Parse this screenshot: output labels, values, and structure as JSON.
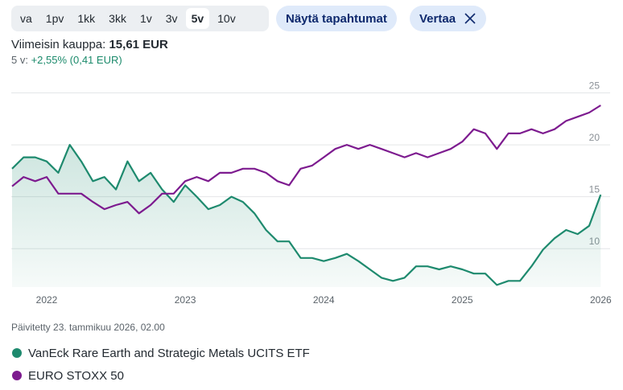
{
  "ui": {
    "tabs": [
      "va",
      "1pv",
      "1kk",
      "3kk",
      "1v",
      "3v",
      "5v",
      "10v"
    ],
    "selected_tab": 6,
    "show_events": "Näytä tapahtumat",
    "compare": "Vertaa",
    "last_trade_label": "Viimeisin kauppa:",
    "last_trade_value": "15,61 EUR",
    "change_label": "5 v:",
    "change_value": "+2,55% (0,41 EUR)",
    "updated": "Päivitetty 23. tammikuu 2026, 02.00"
  },
  "chart_data": {
    "type": "line",
    "categories": [
      null,
      null,
      null,
      "2022",
      null,
      null,
      null,
      null,
      null,
      null,
      null,
      null,
      null,
      null,
      null,
      "2023",
      null,
      null,
      null,
      null,
      null,
      null,
      null,
      null,
      null,
      null,
      null,
      "2024",
      null,
      null,
      null,
      null,
      null,
      null,
      null,
      null,
      null,
      null,
      null,
      "2025",
      null,
      null,
      null,
      null,
      null,
      null,
      null,
      null,
      null,
      null,
      null,
      "2026"
    ],
    "series": [
      {
        "name": "VanEck Rare Earth and Strategic Metals UCITS ETF",
        "color": "#1e8a6e",
        "values": [
          17.7,
          18.8,
          18.8,
          18.4,
          17.3,
          20,
          18.4,
          16.5,
          16.9,
          15.7,
          18.4,
          16.5,
          17.3,
          15.7,
          14.5,
          16.1,
          15,
          13.8,
          14.2,
          15,
          14.5,
          13.4,
          11.8,
          10.7,
          10.7,
          9.1,
          9.1,
          8.8,
          9.1,
          9.5,
          8.8,
          8,
          7.2,
          6.9,
          7.2,
          8.3,
          8.3,
          8,
          8.3,
          8,
          7.6,
          7.6,
          6.5,
          6.9,
          6.9,
          8.3,
          9.9,
          11,
          11.8,
          11.4,
          12.2,
          15.2
        ]
      },
      {
        "name": "EURO STOXX 50",
        "color": "#7d1b8f",
        "values": [
          16,
          16.9,
          16.5,
          16.9,
          15.3,
          15.3,
          15.3,
          14.5,
          13.8,
          14.2,
          14.5,
          13.4,
          14.2,
          15.3,
          15.3,
          16.5,
          16.9,
          16.5,
          17.3,
          17.3,
          17.7,
          17.7,
          17.3,
          16.5,
          16.1,
          17.7,
          18,
          18.8,
          19.6,
          20,
          19.6,
          20,
          19.6,
          19.2,
          18.8,
          19.2,
          18.8,
          19.2,
          19.6,
          20.3,
          21.5,
          21.1,
          19.6,
          21.1,
          21.1,
          21.5,
          21.1,
          21.5,
          22.3,
          22.7,
          23.1,
          23.8
        ]
      }
    ],
    "ylim": [
      6.3,
      26.2
    ],
    "yticks": [
      10,
      15,
      20,
      25
    ],
    "grid": true
  }
}
